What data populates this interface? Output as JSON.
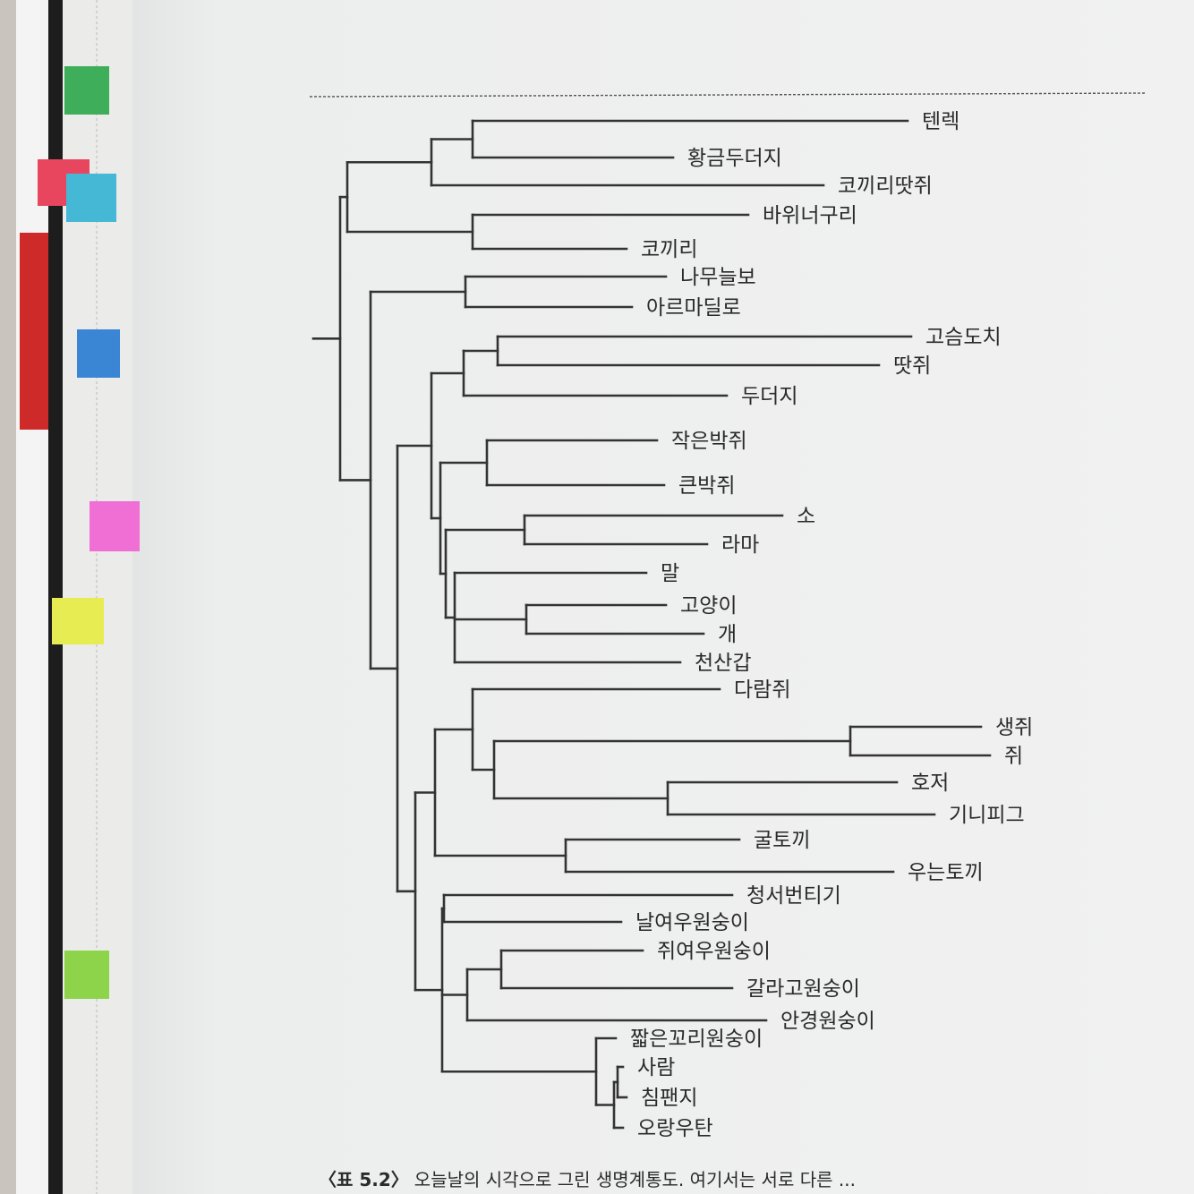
{
  "tree": {
    "leaves": [
      "텐렉",
      "황금두더지",
      "코끼리땃쥐",
      "바위너구리",
      "코끼리",
      "나무늘보",
      "아르마딜로",
      "고슴도치",
      "땃쥐",
      "두더지",
      "작은박쥐",
      "큰박쥐",
      "소",
      "라마",
      "말",
      "고양이",
      "개",
      "천산갑",
      "다람쥐",
      "생쥐",
      "쥐",
      "호저",
      "기니피그",
      "굴토끼",
      "우는토끼",
      "청서번티기",
      "날여우원숭이",
      "쥐여우원숭이",
      "갈라고원숭이",
      "안경원숭이",
      "짧은꼬리원숭이",
      "사람",
      "침팬지",
      "오랑우탄"
    ]
  },
  "caption": {
    "label": "〈표 5.2〉",
    "text": "오늘날의 시각으로 그린 생명계통도. 여기서는 서로 다른 ..."
  },
  "colors": {
    "page": "#eeefef",
    "line": "#333333",
    "tabs": [
      "#3fae5a",
      "#e8465e",
      "#45b8d6",
      "#3a86d4",
      "#ef6fd4",
      "#e7ec52",
      "#8dd44a"
    ]
  }
}
